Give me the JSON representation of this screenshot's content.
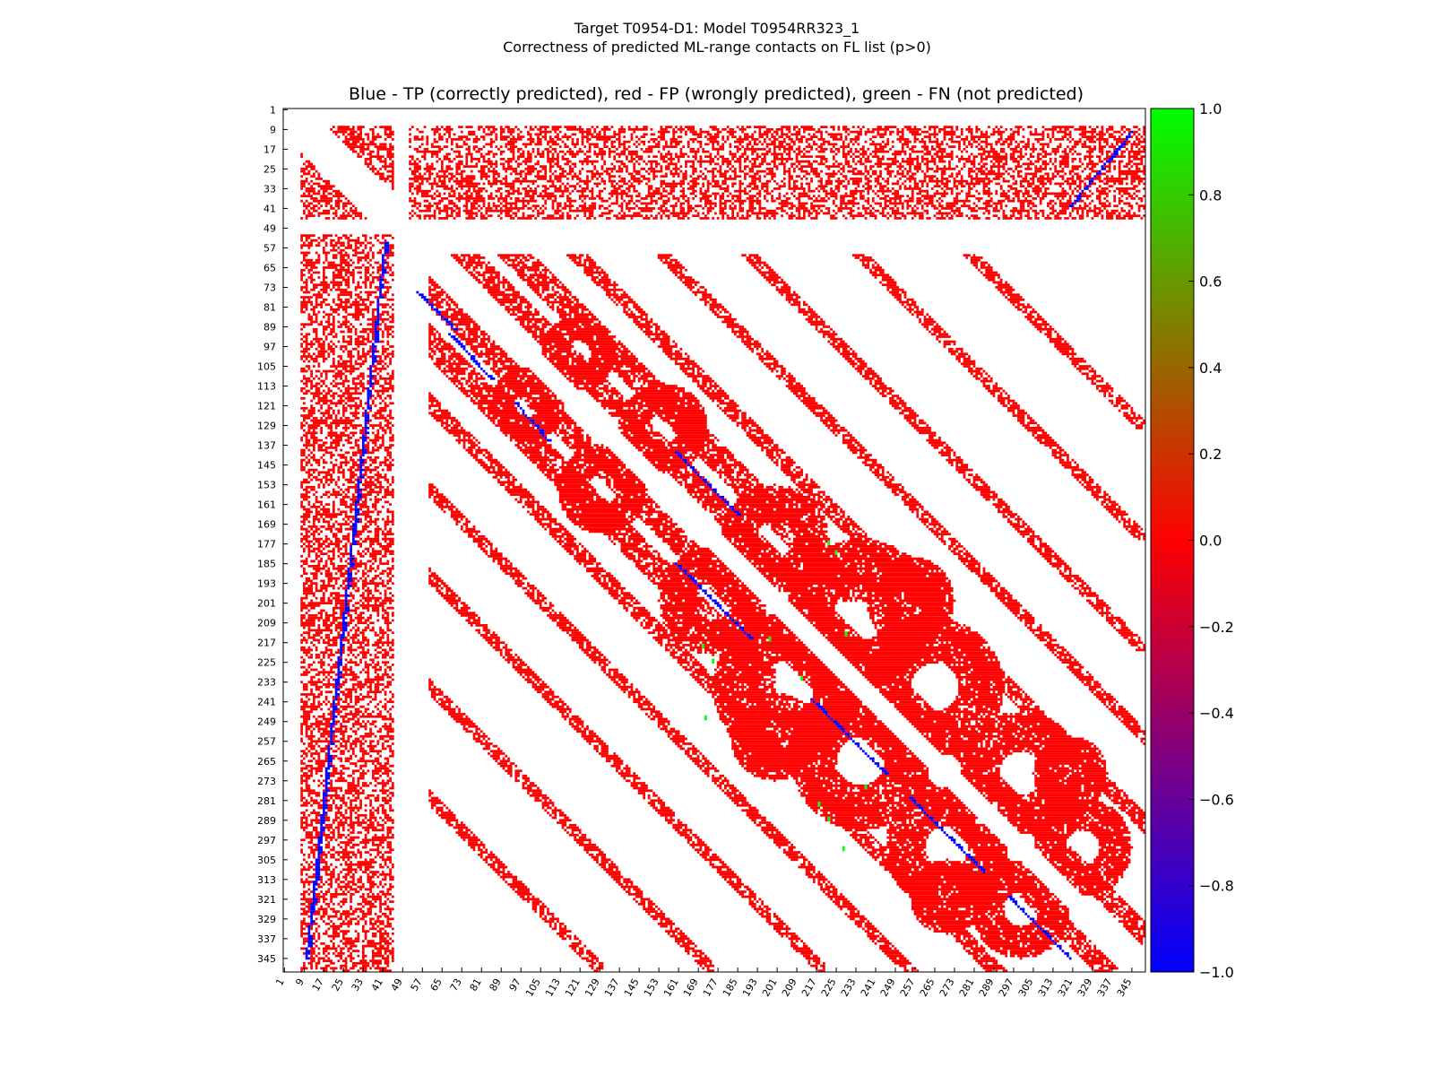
{
  "chart_data": {
    "type": "heatmap",
    "title": "Target T0954-D1: Model T0954RR323_1",
    "subtitle": "Correctness of predicted ML-range contacts on FL list (p>0)",
    "axes_title": "Blue - TP (correctly predicted), red - FP (wrongly predicted), green - FN (not predicted)",
    "residue_range": [
      1,
      350
    ],
    "tick_labels": [
      "1",
      "9",
      "17",
      "25",
      "33",
      "41",
      "49",
      "57",
      "65",
      "73",
      "81",
      "89",
      "97",
      "105",
      "113",
      "121",
      "129",
      "137",
      "145",
      "153",
      "161",
      "169",
      "177",
      "185",
      "193",
      "201",
      "209",
      "217",
      "225",
      "233",
      "241",
      "249",
      "257",
      "265",
      "273",
      "281",
      "289",
      "297",
      "305",
      "313",
      "321",
      "329",
      "337",
      "345"
    ],
    "legend": [
      {
        "category": "TP",
        "meaning": "Blue - TP (correctly predicted)",
        "color": "#0000ff",
        "value": -1
      },
      {
        "category": "FP",
        "meaning": "red - FP (wrongly predicted)",
        "color": "#ff0000",
        "value": 0
      },
      {
        "category": "FN",
        "meaning": "green - FN (not predicted)",
        "color": "#00ff00",
        "value": 1
      }
    ],
    "colorbar": {
      "range": [
        -1.0,
        1.0
      ],
      "ticks": [
        "1.0",
        "0.8",
        "0.6",
        "0.4",
        "0.2",
        "0.0",
        "−0.2",
        "−0.4",
        "−0.6",
        "−0.8",
        "−1.0"
      ],
      "colors": [
        "#0000ff",
        "#ff0000",
        "#00ff00"
      ]
    },
    "diagonal_gap_residues": 6,
    "gap_residue_band": [
      46,
      51
    ],
    "dense_blocks": [
      {
        "rows": [
          8,
          45
        ],
        "cols": [
          52,
          350
        ]
      },
      {
        "rows": [
          52,
          350
        ],
        "cols": [
          8,
          45
        ]
      }
    ],
    "diagonal_bands": [
      {
        "offset": 15,
        "rows": [
          60,
          190
        ],
        "half_width": 6
      },
      {
        "offset": 15,
        "rows": [
          190,
          340
        ],
        "half_width": 5
      },
      {
        "offset": 35,
        "rows": [
          60,
          200
        ],
        "half_width": 7
      },
      {
        "offset": 60,
        "rows": [
          60,
          300
        ],
        "half_width": 4
      },
      {
        "offset": 95,
        "rows": [
          60,
          260
        ],
        "half_width": 3
      },
      {
        "offset": 130,
        "rows": [
          60,
          220
        ],
        "half_width": 3
      },
      {
        "offset": 175,
        "rows": [
          60,
          175
        ],
        "half_width": 3
      },
      {
        "offset": 220,
        "rows": [
          60,
          130
        ],
        "half_width": 3
      }
    ],
    "blobs": [
      {
        "r": 205,
        "c": 235,
        "rad": 30
      },
      {
        "r": 235,
        "c": 265,
        "rad": 28
      },
      {
        "r": 175,
        "c": 200,
        "rad": 22
      },
      {
        "r": 270,
        "c": 300,
        "rad": 25
      },
      {
        "r": 300,
        "c": 325,
        "rad": 20
      },
      {
        "r": 130,
        "c": 155,
        "rad": 18
      },
      {
        "r": 100,
        "c": 120,
        "rad": 15
      },
      {
        "r": 255,
        "c": 200,
        "rad": 18
      },
      {
        "r": 320,
        "c": 270,
        "rad": 15
      }
    ],
    "tp_segments": [
      {
        "r0": 10,
        "c0": 345,
        "r1": 40,
        "c1": 320
      },
      {
        "r0": 55,
        "c0": 42,
        "r1": 345,
        "c1": 10
      },
      {
        "r0": 92,
        "c0": 68,
        "r1": 110,
        "c1": 85
      },
      {
        "r0": 120,
        "c0": 95,
        "r1": 135,
        "c1": 108
      },
      {
        "r0": 140,
        "c0": 160,
        "r1": 165,
        "c1": 185
      },
      {
        "r0": 185,
        "c0": 160,
        "r1": 215,
        "c1": 190
      },
      {
        "r0": 240,
        "c0": 215,
        "r1": 270,
        "c1": 245
      },
      {
        "r0": 280,
        "c0": 255,
        "r1": 310,
        "c1": 285
      },
      {
        "r0": 320,
        "c0": 295,
        "r1": 345,
        "c1": 320
      },
      {
        "r0": 75,
        "c0": 55,
        "r1": 90,
        "c1": 70
      }
    ],
    "fn_points": [
      [
        176,
        222
      ],
      [
        180,
        225
      ],
      [
        213,
        229
      ],
      [
        218,
        171
      ],
      [
        224,
        175
      ],
      [
        247,
        172
      ],
      [
        275,
        237
      ],
      [
        282,
        218
      ],
      [
        288,
        222
      ],
      [
        300,
        228
      ],
      [
        215,
        198
      ],
      [
        231,
        211
      ]
    ]
  }
}
